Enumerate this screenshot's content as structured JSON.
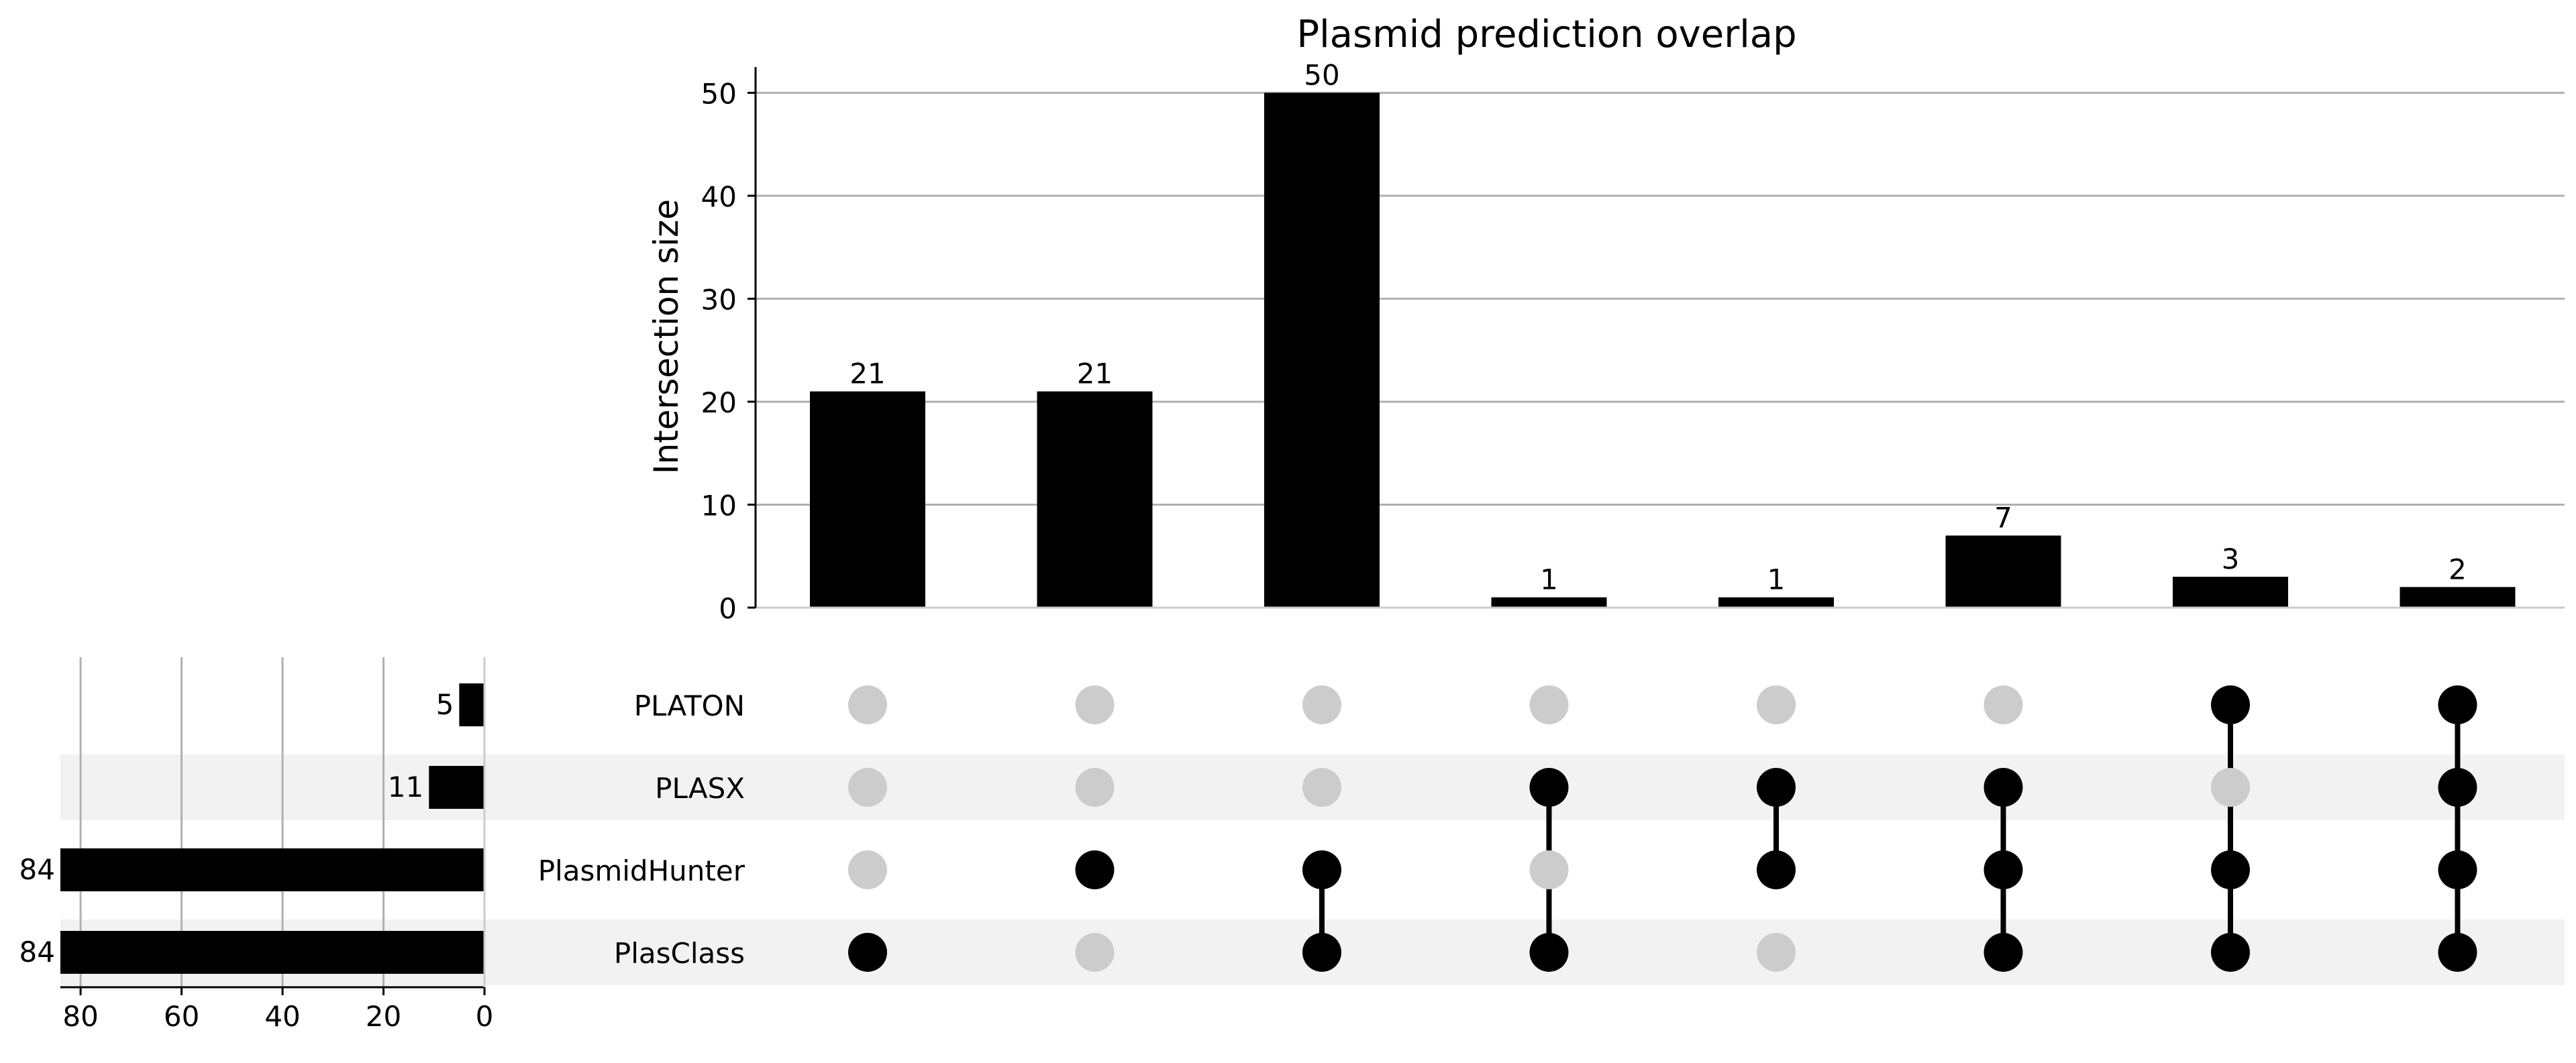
{
  "chart_data": {
    "type": "upset",
    "title": "Plasmid prediction overlap",
    "intersection_axis": {
      "ylabel": "Intersection size",
      "ylim": [
        0,
        52.5
      ],
      "ticks": [
        0,
        10,
        20,
        30,
        40,
        50
      ],
      "grid": true
    },
    "sets": [
      {
        "name": "PLATON",
        "size": 5
      },
      {
        "name": "PLASX",
        "size": 11
      },
      {
        "name": "PlasmidHunter",
        "size": 84
      },
      {
        "name": "PlasClass",
        "size": 84
      }
    ],
    "set_size_axis": {
      "xlim": [
        84,
        0
      ],
      "ticks": [
        80,
        60,
        40,
        20,
        0
      ],
      "grid": true
    },
    "intersections": [
      {
        "members": [
          "PlasClass"
        ],
        "size": 21
      },
      {
        "members": [
          "PlasmidHunter"
        ],
        "size": 21
      },
      {
        "members": [
          "PlasmidHunter",
          "PlasClass"
        ],
        "size": 50
      },
      {
        "members": [
          "PLASX",
          "PlasClass"
        ],
        "size": 1
      },
      {
        "members": [
          "PLASX",
          "PlasmidHunter"
        ],
        "size": 1
      },
      {
        "members": [
          "PLASX",
          "PlasmidHunter",
          "PlasClass"
        ],
        "size": 7
      },
      {
        "members": [
          "PLATON",
          "PlasmidHunter",
          "PlasClass"
        ],
        "size": 3
      },
      {
        "members": [
          "PLATON",
          "PLASX",
          "PlasmidHunter",
          "PlasClass"
        ],
        "size": 2
      }
    ],
    "colors": {
      "bar": "#000000",
      "dot_active": "#000000",
      "dot_inactive": "#cccccc",
      "row_shade": "#f2f2f2",
      "grid": "#b0b0b0"
    }
  }
}
